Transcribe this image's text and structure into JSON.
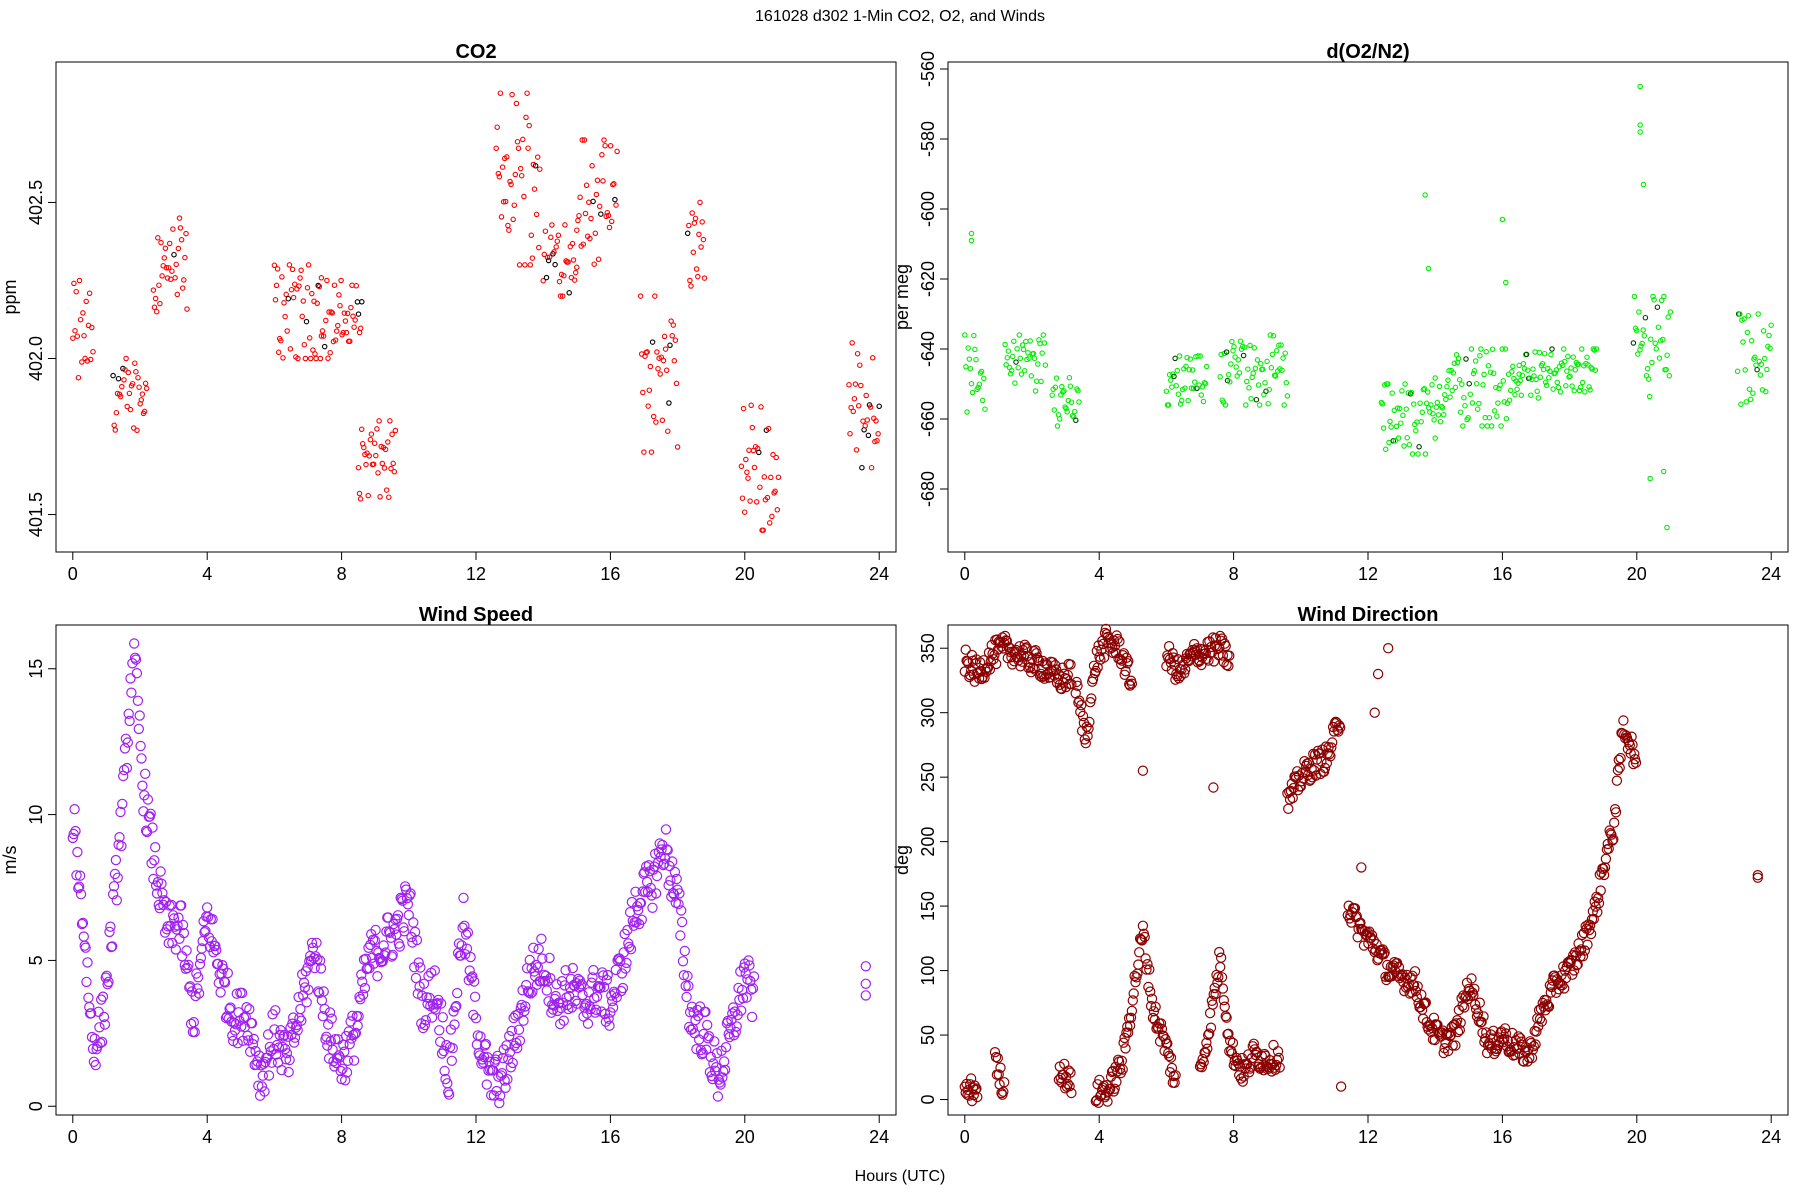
{
  "suptitle": "161028   d302   1-Min CO2, O2, and Winds",
  "x_common_label": "Hours (UTC)",
  "chart_data": [
    {
      "type": "scatter",
      "title": "CO2",
      "ylabel": "ppm",
      "xlim": [
        -0.5,
        24.5
      ],
      "ylim": [
        401.38,
        402.95
      ],
      "xticks": [
        0,
        4,
        8,
        12,
        16,
        20,
        24
      ],
      "xtick_labels": [
        "0",
        "4",
        "8",
        "12",
        "16",
        "20",
        "24"
      ],
      "yticks": [
        401.5,
        402.0,
        402.5
      ],
      "ytick_labels": [
        "401.5",
        "402.0",
        "402.5"
      ],
      "color": "#ff0000",
      "highlight_color": "#000000",
      "clusters": [
        {
          "x0": 0.0,
          "x1": 0.6,
          "y0": 401.9,
          "y1": 402.25
        },
        {
          "x0": 1.2,
          "x1": 2.2,
          "y0": 401.77,
          "y1": 402.0
        },
        {
          "x0": 2.4,
          "x1": 3.4,
          "y0": 402.15,
          "y1": 402.45
        },
        {
          "x0": 6.0,
          "x1": 7.4,
          "y0": 402.0,
          "y1": 402.3
        },
        {
          "x0": 7.4,
          "x1": 8.6,
          "y0": 402.0,
          "y1": 402.25
        },
        {
          "x0": 8.5,
          "x1": 9.6,
          "y0": 401.55,
          "y1": 401.8
        },
        {
          "x0": 12.6,
          "x1": 13.9,
          "y0": 402.3,
          "y1": 402.85
        },
        {
          "x0": 14.0,
          "x1": 15.0,
          "y0": 402.2,
          "y1": 402.45
        },
        {
          "x0": 15.0,
          "x1": 16.2,
          "y0": 402.3,
          "y1": 402.7
        },
        {
          "x0": 16.9,
          "x1": 18.0,
          "y0": 401.7,
          "y1": 402.2
        },
        {
          "x0": 18.3,
          "x1": 18.8,
          "y0": 402.2,
          "y1": 402.5
        },
        {
          "x0": 19.9,
          "x1": 21.0,
          "y0": 401.45,
          "y1": 401.85
        },
        {
          "x0": 23.1,
          "x1": 24.0,
          "y0": 401.65,
          "y1": 402.05
        }
      ]
    },
    {
      "type": "scatter",
      "title": "d(O2/N2)",
      "ylabel": "per meg",
      "xlim": [
        -0.5,
        24.5
      ],
      "ylim": [
        -698,
        -558
      ],
      "xticks": [
        0,
        4,
        8,
        12,
        16,
        20,
        24
      ],
      "xtick_labels": [
        "0",
        "4",
        "8",
        "12",
        "16",
        "20",
        "24"
      ],
      "yticks": [
        -680,
        -660,
        -640,
        -620,
        -600,
        -580,
        -560
      ],
      "ytick_labels": [
        "-680",
        "-660",
        "-640",
        "-620",
        "-600",
        "-580",
        "-560"
      ],
      "color": "#00ee00",
      "highlight_color": "#004400",
      "clusters": [
        {
          "x0": 0.0,
          "x1": 0.6,
          "y0": -658,
          "y1": -636
        },
        {
          "x0": 1.2,
          "x1": 2.4,
          "y0": -652,
          "y1": -636
        },
        {
          "x0": 2.6,
          "x1": 3.4,
          "y0": -662,
          "y1": -646
        },
        {
          "x0": 6.0,
          "x1": 7.2,
          "y0": -656,
          "y1": -642
        },
        {
          "x0": 7.6,
          "x1": 9.6,
          "y0": -656,
          "y1": -636
        },
        {
          "x0": 12.4,
          "x1": 14.0,
          "y0": -670,
          "y1": -650
        },
        {
          "x0": 14.0,
          "x1": 16.5,
          "y0": -662,
          "y1": -640
        },
        {
          "x0": 16.5,
          "x1": 18.8,
          "y0": -654,
          "y1": -640
        },
        {
          "x0": 19.9,
          "x1": 21.0,
          "y0": -655,
          "y1": -625
        },
        {
          "x0": 23.0,
          "x1": 24.0,
          "y0": -662,
          "y1": -630
        }
      ],
      "outliers": [
        [
          0.2,
          -607
        ],
        [
          0.2,
          -609
        ],
        [
          13.7,
          -596
        ],
        [
          13.8,
          -617
        ],
        [
          16.0,
          -603
        ],
        [
          16.1,
          -621
        ],
        [
          20.1,
          -565
        ],
        [
          20.1,
          -576
        ],
        [
          20.1,
          -578
        ],
        [
          20.2,
          -593
        ],
        [
          20.8,
          -675
        ],
        [
          20.9,
          -691
        ],
        [
          20.4,
          -677
        ]
      ]
    },
    {
      "type": "scatter",
      "title": "Wind Speed",
      "ylabel": "m/s",
      "xlim": [
        -0.5,
        24.5
      ],
      "ylim": [
        -0.3,
        16.5
      ],
      "xticks": [
        0,
        4,
        8,
        12,
        16,
        20,
        24
      ],
      "xtick_labels": [
        "0",
        "4",
        "8",
        "12",
        "16",
        "20",
        "24"
      ],
      "yticks": [
        0,
        5,
        10,
        15
      ],
      "ytick_labels": [
        "0",
        "5",
        "10",
        "15"
      ],
      "color": "#a020f0",
      "series_path": [
        [
          0.0,
          10.0
        ],
        [
          0.3,
          6.5
        ],
        [
          0.6,
          2.0
        ],
        [
          0.9,
          3.0
        ],
        [
          1.2,
          6.5
        ],
        [
          1.5,
          10.5
        ],
        [
          1.8,
          15.8
        ],
        [
          2.1,
          11.0
        ],
        [
          2.4,
          8.5
        ],
        [
          2.8,
          6.0
        ],
        [
          3.2,
          6.2
        ],
        [
          3.6,
          3.0
        ],
        [
          4.0,
          6.5
        ],
        [
          4.4,
          4.5
        ],
        [
          4.8,
          3.0
        ],
        [
          5.2,
          3.2
        ],
        [
          5.6,
          1.0
        ],
        [
          6.0,
          2.5
        ],
        [
          6.4,
          1.5
        ],
        [
          6.8,
          3.5
        ],
        [
          7.2,
          5.5
        ],
        [
          7.6,
          2.5
        ],
        [
          8.0,
          1.5
        ],
        [
          8.4,
          2.5
        ],
        [
          8.8,
          5.0
        ],
        [
          9.2,
          5.5
        ],
        [
          9.6,
          6.0
        ],
        [
          10.0,
          7.0
        ],
        [
          10.4,
          3.5
        ],
        [
          10.8,
          4.0
        ],
        [
          11.2,
          1.0
        ],
        [
          11.6,
          6.5
        ],
        [
          12.0,
          3.0
        ],
        [
          12.4,
          0.8
        ],
        [
          12.8,
          1.0
        ],
        [
          13.2,
          2.5
        ],
        [
          13.6,
          4.5
        ],
        [
          14.0,
          5.0
        ],
        [
          14.4,
          3.5
        ],
        [
          14.8,
          4.0
        ],
        [
          15.2,
          3.5
        ],
        [
          15.6,
          4.0
        ],
        [
          16.0,
          3.5
        ],
        [
          16.4,
          5.0
        ],
        [
          16.8,
          7.0
        ],
        [
          17.2,
          7.5
        ],
        [
          17.6,
          9.0
        ],
        [
          18.0,
          7.0
        ],
        [
          18.4,
          3.0
        ],
        [
          18.8,
          2.5
        ],
        [
          19.2,
          1.0
        ],
        [
          19.6,
          2.5
        ],
        [
          20.0,
          4.5
        ],
        [
          20.3,
          3.5
        ]
      ],
      "spread": 0.9,
      "extra_points": [
        [
          23.6,
          4.8
        ],
        [
          23.6,
          4.2
        ],
        [
          23.6,
          3.8
        ]
      ]
    },
    {
      "type": "scatter",
      "title": "Wind Direction",
      "ylabel": "deg",
      "xlim": [
        -0.5,
        24.5
      ],
      "ylim": [
        -12,
        368
      ],
      "xticks": [
        0,
        4,
        8,
        12,
        16,
        20,
        24
      ],
      "xtick_labels": [
        "0",
        "4",
        "8",
        "12",
        "16",
        "20",
        "24"
      ],
      "yticks": [
        0,
        50,
        100,
        150,
        200,
        250,
        300,
        350
      ],
      "ytick_labels": [
        "0",
        "50",
        "100",
        "150",
        "200",
        "250",
        "300",
        "350"
      ],
      "color": "#8b0000",
      "segments": [
        [
          [
            0.0,
            340
          ],
          [
            0.4,
            330
          ],
          [
            0.8,
            345
          ],
          [
            1.2,
            350
          ],
          [
            1.6,
            345
          ],
          [
            2.0,
            340
          ],
          [
            2.4,
            335
          ],
          [
            2.8,
            325
          ],
          [
            3.2,
            330
          ]
        ],
        [
          [
            3.3,
            320
          ],
          [
            3.6,
            280
          ],
          [
            3.9,
            340
          ],
          [
            4.2,
            355
          ],
          [
            4.6,
            350
          ],
          [
            5.0,
            320
          ]
        ],
        [
          [
            6.0,
            345
          ],
          [
            6.4,
            330
          ],
          [
            6.8,
            345
          ],
          [
            7.6,
            350
          ],
          [
            7.9,
            340
          ]
        ],
        [
          [
            0.0,
            5
          ],
          [
            0.4,
            10
          ]
        ],
        [
          [
            0.9,
            30
          ],
          [
            1.2,
            5
          ]
        ],
        [
          [
            2.8,
            25
          ],
          [
            3.2,
            10
          ]
        ],
        [
          [
            3.9,
            5
          ],
          [
            4.3,
            8
          ],
          [
            4.7,
            30
          ],
          [
            5.0,
            80
          ],
          [
            5.3,
            130
          ],
          [
            5.6,
            70
          ],
          [
            6.0,
            40
          ],
          [
            6.3,
            10
          ]
        ],
        [
          [
            7.0,
            20
          ],
          [
            7.3,
            60
          ],
          [
            7.6,
            110
          ],
          [
            7.9,
            40
          ],
          [
            8.3,
            20
          ],
          [
            8.6,
            35
          ],
          [
            9.0,
            30
          ],
          [
            9.4,
            35
          ]
        ],
        [
          [
            9.6,
            230
          ],
          [
            10.0,
            250
          ],
          [
            10.4,
            260
          ],
          [
            10.8,
            265
          ],
          [
            11.2,
            300
          ]
        ],
        [
          [
            11.4,
            150
          ],
          [
            11.8,
            130
          ],
          [
            12.2,
            120
          ],
          [
            12.6,
            100
          ],
          [
            13.0,
            95
          ],
          [
            13.4,
            90
          ],
          [
            13.8,
            60
          ],
          [
            14.2,
            45
          ],
          [
            14.6,
            50
          ],
          [
            15.0,
            90
          ],
          [
            15.3,
            70
          ],
          [
            15.6,
            40
          ],
          [
            16.0,
            50
          ],
          [
            16.4,
            40
          ],
          [
            16.8,
            35
          ],
          [
            17.2,
            70
          ],
          [
            17.6,
            90
          ],
          [
            18.0,
            100
          ],
          [
            18.4,
            120
          ],
          [
            18.8,
            150
          ],
          [
            19.0,
            180
          ],
          [
            19.3,
            210
          ],
          [
            19.6,
            290
          ],
          [
            19.9,
            270
          ],
          [
            20.0,
            245
          ]
        ]
      ],
      "spread": 10,
      "extra_points": [
        [
          23.6,
          172
        ],
        [
          23.6,
          174
        ],
        [
          7.4,
          242
        ],
        [
          11.2,
          10
        ],
        [
          12.3,
          330
        ],
        [
          12.6,
          350
        ],
        [
          5.3,
          255
        ],
        [
          12.2,
          300
        ],
        [
          11.8,
          180
        ]
      ]
    }
  ]
}
